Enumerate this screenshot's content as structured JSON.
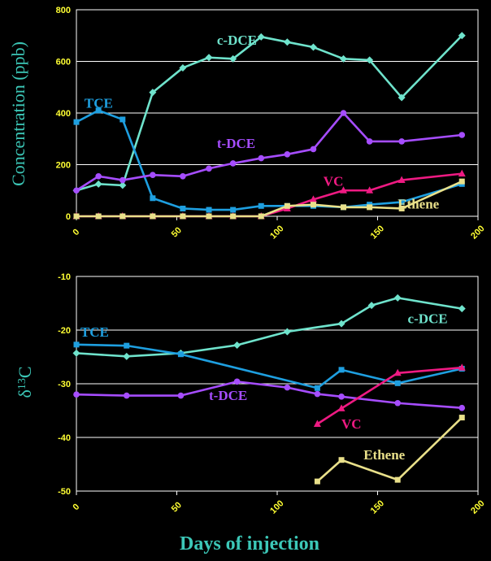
{
  "figure": {
    "xlabel": "Days of injection"
  },
  "colors": {
    "background": "#000000",
    "grid": "#ffffff",
    "tick_text": "#ffff33",
    "axis_label": "#3cc8b8",
    "xlabel": "#3cc8b8"
  },
  "chart_data": [
    {
      "type": "line",
      "ylabel": "Concentration (ppb)",
      "xlim": [
        0,
        200
      ],
      "ylim": [
        0,
        800
      ],
      "xticks": [
        0,
        50,
        100,
        150,
        200
      ],
      "yticks": [
        0,
        200,
        400,
        600,
        800
      ],
      "grid": true,
      "series": [
        {
          "name": "c-DCE",
          "color": "#6fe3cc",
          "marker": "diamond",
          "label_pos": [
            70,
            665
          ],
          "x": [
            0,
            11,
            23,
            38,
            53,
            66,
            78,
            92,
            105,
            118,
            133,
            146,
            162,
            192
          ],
          "y": [
            100,
            125,
            120,
            480,
            575,
            615,
            610,
            695,
            675,
            655,
            610,
            605,
            460,
            700
          ]
        },
        {
          "name": "TCE",
          "color": "#1e9fe0",
          "marker": "square",
          "label_pos": [
            4,
            420
          ],
          "x": [
            0,
            11,
            23,
            38,
            53,
            66,
            78,
            92,
            105,
            118,
            133,
            146,
            162,
            192
          ],
          "y": [
            365,
            410,
            375,
            70,
            30,
            25,
            25,
            40,
            40,
            40,
            35,
            45,
            55,
            125
          ]
        },
        {
          "name": "t-DCE",
          "color": "#a64dff",
          "marker": "circle",
          "label_pos": [
            70,
            265
          ],
          "x": [
            0,
            11,
            23,
            38,
            53,
            66,
            78,
            92,
            105,
            118,
            133,
            146,
            162,
            192
          ],
          "y": [
            100,
            155,
            140,
            160,
            155,
            185,
            205,
            225,
            240,
            260,
            400,
            290,
            290,
            315
          ]
        },
        {
          "name": "VC",
          "color": "#ee1a82",
          "marker": "triangle",
          "label_pos": [
            123,
            118
          ],
          "x": [
            0,
            11,
            23,
            38,
            53,
            66,
            78,
            92,
            105,
            118,
            133,
            146,
            162,
            192
          ],
          "y": [
            0,
            0,
            0,
            0,
            0,
            0,
            0,
            0,
            30,
            65,
            100,
            100,
            140,
            165
          ]
        },
        {
          "name": "Ethene",
          "color": "#e9e08a",
          "marker": "square",
          "label_pos": [
            160,
            30
          ],
          "x": [
            0,
            11,
            23,
            38,
            53,
            66,
            78,
            92,
            105,
            118,
            133,
            146,
            162,
            192
          ],
          "y": [
            0,
            0,
            0,
            0,
            0,
            0,
            0,
            0,
            40,
            45,
            35,
            35,
            30,
            135
          ]
        }
      ]
    },
    {
      "type": "line",
      "ylabel": "δ13C",
      "xlim": [
        0,
        200
      ],
      "ylim": [
        -50,
        -10
      ],
      "xticks": [
        0,
        50,
        100,
        150,
        200
      ],
      "yticks": [
        -50,
        -40,
        -30,
        -20,
        -10
      ],
      "grid": true,
      "series": [
        {
          "name": "c-DCE",
          "color": "#6fe3cc",
          "marker": "diamond",
          "label_pos": [
            165,
            -18.7
          ],
          "x": [
            0,
            25,
            52,
            80,
            105,
            132,
            147,
            160,
            192
          ],
          "y": [
            -24.3,
            -24.9,
            -24.3,
            -22.8,
            -20.3,
            -18.8,
            -15.4,
            -14.0,
            -16.0
          ]
        },
        {
          "name": "TCE",
          "color": "#1e9fe0",
          "marker": "square",
          "label_pos": [
            2,
            -21.2
          ],
          "x": [
            0,
            25,
            52,
            120,
            132,
            160,
            192
          ],
          "y": [
            -22.7,
            -22.9,
            -24.5,
            -30.8,
            -27.4,
            -29.9,
            -27.2
          ]
        },
        {
          "name": "t-DCE",
          "color": "#a64dff",
          "marker": "circle",
          "label_pos": [
            66,
            -33.0
          ],
          "x": [
            0,
            25,
            52,
            80,
            105,
            120,
            132,
            160,
            192
          ],
          "y": [
            -32.0,
            -32.2,
            -32.2,
            -29.6,
            -30.7,
            -31.9,
            -32.4,
            -33.6,
            -34.5
          ]
        },
        {
          "name": "VC",
          "color": "#ee1a82",
          "marker": "triangle",
          "label_pos": [
            132,
            -38.3
          ],
          "x": [
            120,
            132,
            160,
            192
          ],
          "y": [
            -37.5,
            -34.6,
            -28.0,
            -27.0
          ]
        },
        {
          "name": "Ethene",
          "color": "#e9e08a",
          "marker": "square",
          "label_pos": [
            143,
            -44.1
          ],
          "x": [
            120,
            132,
            160,
            192
          ],
          "y": [
            -48.2,
            -44.2,
            -47.9,
            -36.3
          ]
        }
      ]
    }
  ]
}
